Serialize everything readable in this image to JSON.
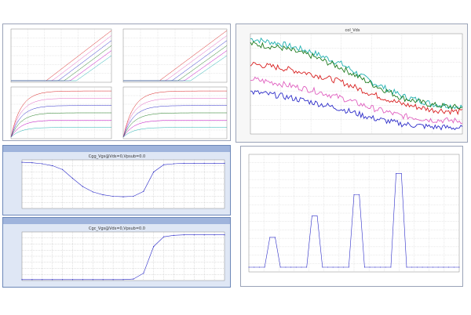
{
  "colors": {
    "blue": "#2b2bc8",
    "green": "#1e7b1e",
    "red": "#d81e1e",
    "pink": "#e060c0",
    "magenta": "#c000c0",
    "cyan": "#20b0b0"
  },
  "panels": {
    "top_left_group": {
      "titles": [
        "",
        "",
        "",
        ""
      ]
    },
    "top_right": {
      "title": "col_Vds"
    },
    "mid_left": {
      "title": "Cgg_Vgs@Vds=0,Vpsub=0.0"
    },
    "bottom_left": {
      "title": "Cgc_Vgs@Vds=0,Vpsub=0.0"
    },
    "bottom_right": {
      "title": ""
    }
  },
  "chart_data": [
    {
      "type": "line",
      "panel": "top_right",
      "title": "col_Vds",
      "series": [
        {
          "color": "#20b0b0",
          "y": [
            0.95,
            0.9,
            0.82,
            0.7,
            0.52,
            0.38,
            0.3,
            0.27
          ]
        },
        {
          "color": "#1e7b1e",
          "y": [
            0.9,
            0.86,
            0.78,
            0.66,
            0.5,
            0.36,
            0.29,
            0.26
          ]
        },
        {
          "color": "#d81e1e",
          "y": [
            0.7,
            0.66,
            0.6,
            0.52,
            0.4,
            0.3,
            0.24,
            0.22
          ]
        },
        {
          "color": "#e060c0",
          "y": [
            0.55,
            0.5,
            0.44,
            0.36,
            0.26,
            0.18,
            0.14,
            0.13
          ]
        },
        {
          "color": "#2b2bc8",
          "y": [
            0.42,
            0.38,
            0.32,
            0.25,
            0.16,
            0.1,
            0.07,
            0.06
          ]
        }
      ]
    },
    {
      "type": "line",
      "panel": "mid_left",
      "title": "Cgg_Vgs@Vds=0,Vpsub=0.0",
      "x": [
        0,
        1,
        2,
        3,
        4,
        5,
        6,
        7,
        8,
        9,
        10,
        11,
        12,
        13,
        14,
        15,
        16,
        17,
        18,
        19,
        20
      ],
      "y": [
        0.95,
        0.94,
        0.92,
        0.88,
        0.8,
        0.62,
        0.45,
        0.34,
        0.28,
        0.25,
        0.24,
        0.25,
        0.35,
        0.75,
        0.9,
        0.92,
        0.93,
        0.93,
        0.93,
        0.93,
        0.93
      ]
    },
    {
      "type": "line",
      "panel": "bottom_left",
      "title": "Cgc_Vgs@Vds=0,Vpsub=0.0",
      "x": [
        0,
        1,
        2,
        3,
        4,
        5,
        6,
        7,
        8,
        9,
        10,
        11,
        12,
        13,
        14,
        15,
        16,
        17,
        18,
        19,
        20
      ],
      "y": [
        0.02,
        0.02,
        0.02,
        0.02,
        0.02,
        0.02,
        0.02,
        0.02,
        0.02,
        0.02,
        0.02,
        0.03,
        0.15,
        0.7,
        0.9,
        0.93,
        0.94,
        0.94,
        0.94,
        0.94,
        0.94
      ]
    },
    {
      "type": "line",
      "panel": "bottom_right",
      "title": "",
      "x": [
        0,
        1,
        2,
        3,
        4,
        5,
        6,
        7,
        8,
        9,
        10,
        11,
        12,
        13,
        14,
        15,
        16,
        17,
        18,
        19,
        20,
        21,
        22,
        23,
        24,
        25,
        26,
        27,
        28,
        29,
        30,
        31,
        32,
        33,
        34,
        35,
        36,
        37,
        38,
        39,
        40
      ],
      "y": [
        0,
        0,
        0,
        0,
        0.28,
        0.28,
        0,
        0,
        0,
        0,
        0,
        0,
        0.48,
        0.48,
        0,
        0,
        0,
        0,
        0,
        0,
        0.68,
        0.68,
        0,
        0,
        0,
        0,
        0,
        0,
        0.88,
        0.88,
        0,
        0,
        0,
        0,
        0,
        0,
        0,
        0,
        0,
        0,
        0
      ]
    }
  ]
}
